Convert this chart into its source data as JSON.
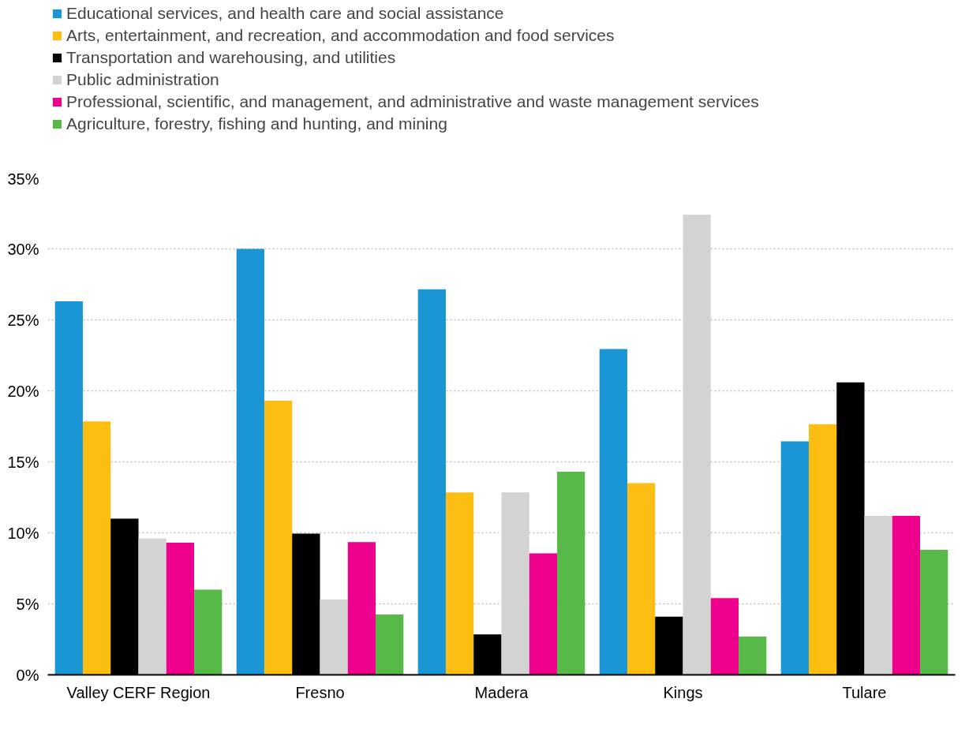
{
  "chart_data": {
    "type": "bar",
    "categories": [
      "Valley CERF Region",
      "Fresno",
      "Madera",
      "Kings",
      "Tulare"
    ],
    "series": [
      {
        "name": "Educational services, and health care and social assistance",
        "color": "#1a96d4",
        "values": [
          26.3,
          30.0,
          27.15,
          22.95,
          16.45
        ]
      },
      {
        "name": "Arts, entertainment, and recreation, and accommodation and food services",
        "color": "#fdbe14",
        "values": [
          17.85,
          19.3,
          12.85,
          13.5,
          17.65
        ]
      },
      {
        "name": "Transportation and warehousing, and utilities",
        "color": "#000000",
        "values": [
          11.0,
          9.95,
          2.85,
          4.1,
          20.6
        ]
      },
      {
        "name": "Public administration",
        "color": "#d3d3d3",
        "values": [
          9.6,
          5.3,
          12.85,
          32.4,
          11.2
        ]
      },
      {
        "name": "Professional, scientific, and management, and administrative and waste management services",
        "color": "#ec008c",
        "values": [
          9.3,
          9.35,
          8.55,
          5.4,
          11.2
        ]
      },
      {
        "name": "Agriculture, forestry, fishing and hunting, and mining",
        "color": "#57b947",
        "values": [
          6.0,
          4.25,
          14.3,
          2.7,
          8.8
        ]
      }
    ],
    "ylim": [
      0,
      35
    ],
    "yticks": [
      {
        "value": 0,
        "label": "0%"
      },
      {
        "value": 5,
        "label": "5%"
      },
      {
        "value": 10,
        "label": "10%"
      },
      {
        "value": 15,
        "label": "15%"
      },
      {
        "value": 20,
        "label": "20%"
      },
      {
        "value": 25,
        "label": "25%"
      },
      {
        "value": 30,
        "label": "30%"
      },
      {
        "value": 35,
        "label": "35%"
      }
    ],
    "grid": "y",
    "legend": "top left"
  }
}
